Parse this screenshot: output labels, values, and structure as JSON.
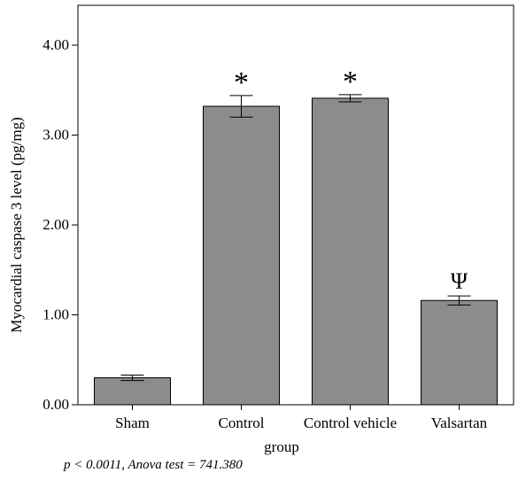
{
  "chart_data": {
    "type": "bar",
    "title": "",
    "xlabel": "group",
    "ylabel": "Myocardial caspase 3 level (pg/mg)",
    "categories": [
      "Sham",
      "Control",
      "Control vehicle",
      "Valsartan"
    ],
    "values": [
      0.3,
      3.32,
      3.41,
      1.16
    ],
    "errors": [
      0.03,
      0.12,
      0.04,
      0.05
    ],
    "annotations": [
      "",
      "*",
      "*",
      "Ψ"
    ],
    "ylim": [
      0,
      4.4
    ],
    "yticks": [
      0,
      1,
      2,
      3,
      4
    ],
    "ytick_labels": [
      "0.00",
      "1.00",
      "2.00",
      "3.00",
      "4.00"
    ],
    "grid": false,
    "bar_color": "#8c8c8c"
  },
  "caption": "p < 0.0011, Anova test = 741.380"
}
